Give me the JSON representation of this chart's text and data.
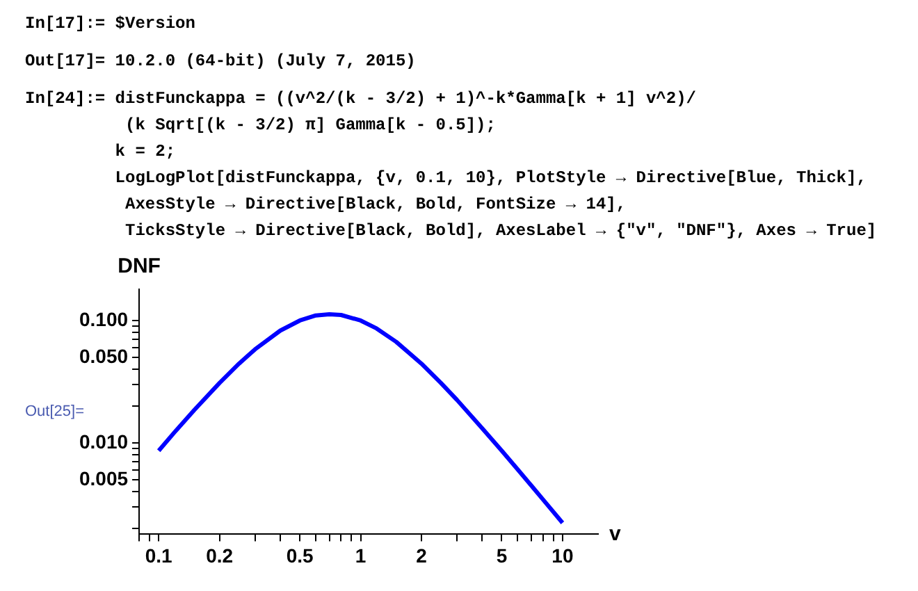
{
  "chart_data": {
    "type": "line",
    "xlabel": "v",
    "ylabel": "DNF",
    "annotations": [
      "In[17]:= $Version",
      "Out[17]= 10.2.0 (64-bit) (July 7, 2015)",
      "In[24]:= distFunckappa = ((v^2/(k - 3/2) + 1)^-k*Gamma[k + 1] v^2)/",
      "          (k Sqrt[(k - 3/2) π] Gamma[k - 0.5]);",
      "         k = 2;",
      "         LogLogPlot[distFunckappa, {v, 0.1, 10}, PlotStyle → Directive[Blue, Thick],",
      "          AxesStyle → Directive[Black, Bold, FontSize → 14],",
      "          TicksStyle → Directive[Black, Bold], AxesLabel → {\"v\", \"DNF\"}, Axes → True]",
      "Out[25]="
    ],
    "x": [
      0.1,
      0.12,
      0.15,
      0.2,
      0.25,
      0.3,
      0.4,
      0.5,
      0.6,
      0.7,
      0.8,
      1,
      1.2,
      1.5,
      2,
      2.5,
      3,
      4,
      5,
      6,
      7,
      8,
      10
    ],
    "series": [
      {
        "color": "#0000ff",
        "values": [
          0.00865,
          0.0123,
          0.0186,
          0.0309,
          0.0445,
          0.0582,
          0.0827,
          0.1,
          0.11,
          0.1125,
          0.111,
          0.1,
          0.0861,
          0.067,
          0.0445,
          0.0309,
          0.0225,
          0.0132,
          0.00865,
          0.00608,
          0.0045,
          0.00346,
          0.00223
        ]
      }
    ],
    "log": "xy",
    "xlim": [
      0.08,
      15
    ],
    "ylim": [
      0.0018,
      0.18
    ],
    "xticks": [
      {
        "value": 0.08,
        "label": null
      },
      {
        "value": 0.09,
        "label": null
      },
      0.1,
      0.2,
      {
        "value": 0.3,
        "label": null
      },
      {
        "value": 0.4,
        "label": null
      },
      0.5,
      {
        "value": 0.6,
        "label": null
      },
      {
        "value": 0.7,
        "label": null
      },
      {
        "value": 0.8,
        "label": null
      },
      {
        "value": 0.9,
        "label": null
      },
      1,
      2,
      {
        "value": 3,
        "label": null
      },
      {
        "value": 4,
        "label": null
      },
      5,
      {
        "value": 6,
        "label": null
      },
      {
        "value": 7,
        "label": null
      },
      {
        "value": 8,
        "label": null
      },
      {
        "value": 9,
        "label": null
      },
      10
    ],
    "yticks": [
      {
        "value": 0.002,
        "label": null
      },
      {
        "value": 0.003,
        "label": null
      },
      {
        "value": 0.004,
        "label": null
      },
      {
        "value": 0.005,
        "label": "0.005"
      },
      {
        "value": 0.006,
        "label": null
      },
      {
        "value": 0.007,
        "label": null
      },
      {
        "value": 0.008,
        "label": null
      },
      {
        "value": 0.009,
        "label": null
      },
      {
        "value": 0.01,
        "label": "0.010"
      },
      {
        "value": 0.02,
        "label": null
      },
      {
        "value": 0.03,
        "label": null
      },
      {
        "value": 0.04,
        "label": null
      },
      {
        "value": 0.05,
        "label": "0.050"
      },
      {
        "value": 0.06,
        "label": null
      },
      {
        "value": 0.07,
        "label": null
      },
      {
        "value": 0.08,
        "label": null
      },
      {
        "value": 0.09,
        "label": null
      },
      {
        "value": 0.1,
        "label": "0.100"
      }
    ],
    "grid": false,
    "legend": false,
    "marker": "none",
    "line_style": "solid"
  }
}
